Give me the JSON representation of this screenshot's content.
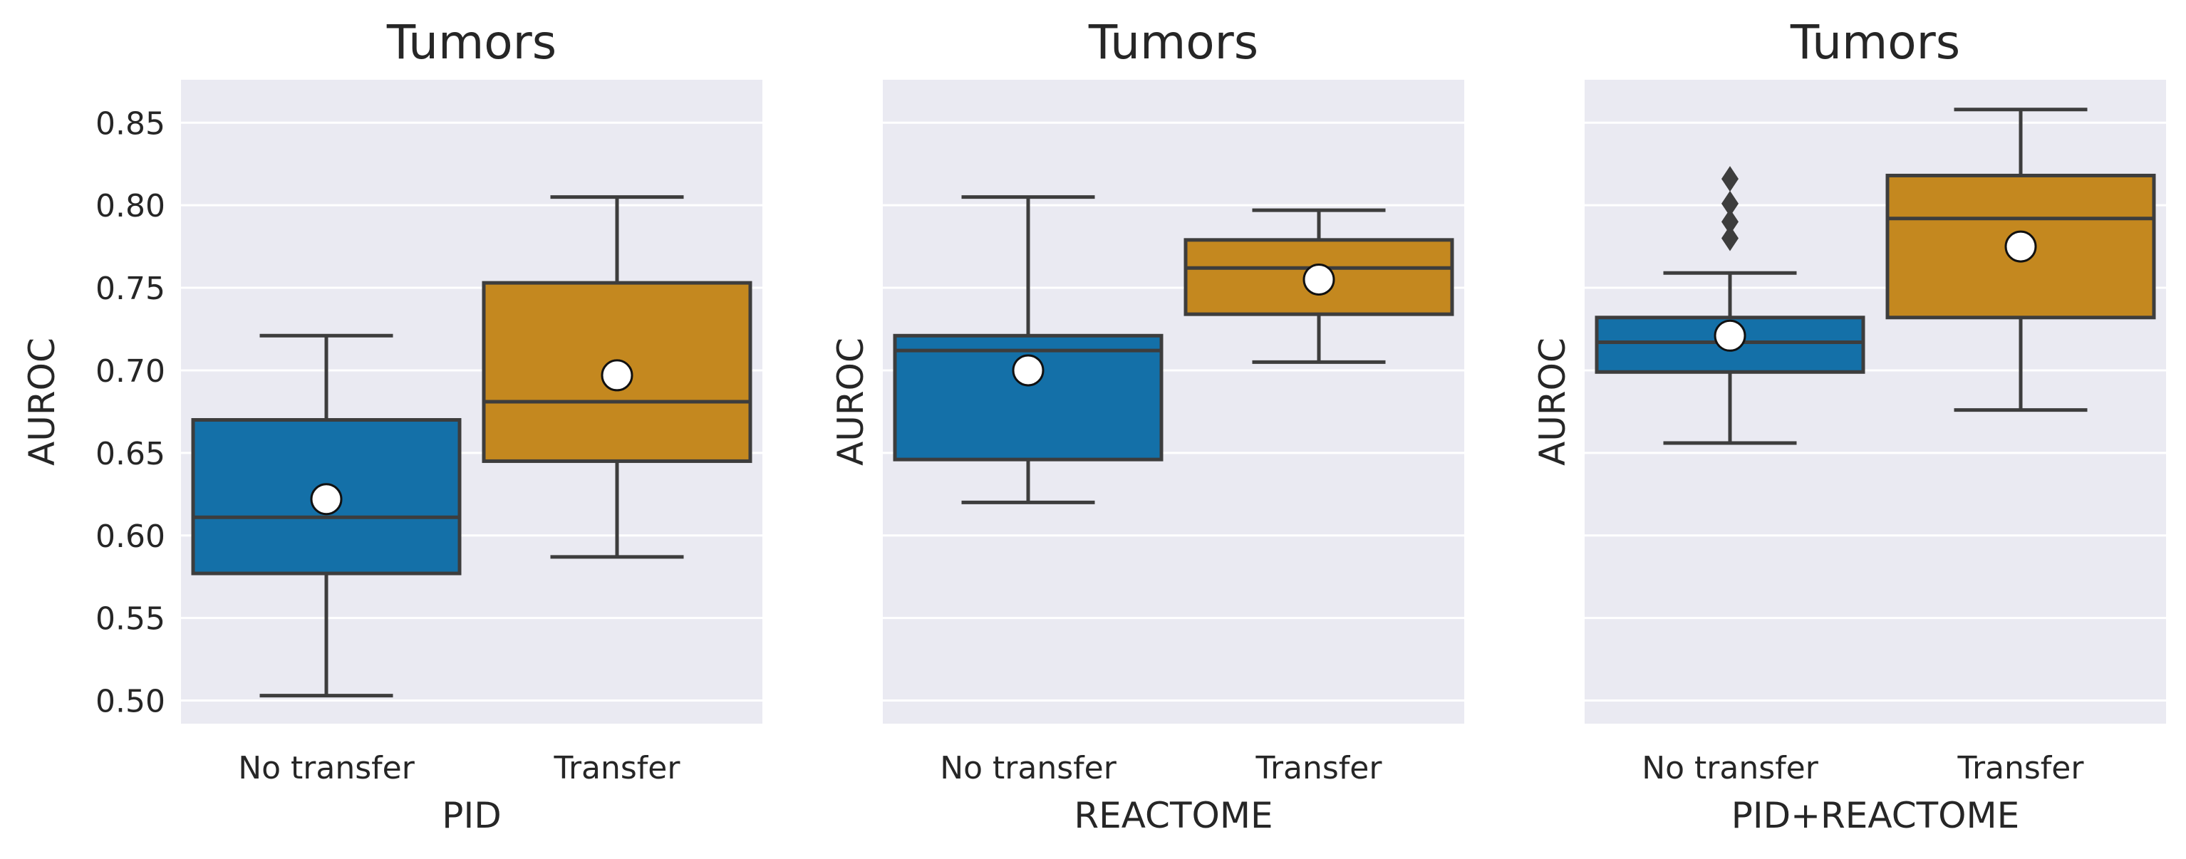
{
  "colors": {
    "panel_bg": "#EAEAF2",
    "grid": "#FFFFFF",
    "no_transfer": "#1470A8",
    "transfer": "#C4881F",
    "line": "#3D3D3D",
    "mean_marker": "#FFFFFF",
    "text": "#262626"
  },
  "chart_data": [
    {
      "type": "box",
      "title": "Tumors",
      "xlabel": "PID",
      "ylabel": "AUROC",
      "categories": [
        "No transfer",
        "Transfer"
      ],
      "ylim": [
        0.486,
        0.876
      ],
      "yticks": [
        "0.50",
        "0.55",
        "0.60",
        "0.65",
        "0.70",
        "0.75",
        "0.80",
        "0.85"
      ],
      "grid": true,
      "boxes": [
        {
          "category": "No transfer",
          "whisker_low": 0.503,
          "q1": 0.577,
          "median": 0.611,
          "q3": 0.67,
          "whisker_high": 0.721,
          "mean": 0.622,
          "outliers": []
        },
        {
          "category": "Transfer",
          "whisker_low": 0.587,
          "q1": 0.645,
          "median": 0.681,
          "q3": 0.753,
          "whisker_high": 0.805,
          "mean": 0.697,
          "outliers": []
        }
      ]
    },
    {
      "type": "box",
      "title": "Tumors",
      "xlabel": "REACTOME",
      "ylabel": "AUROC",
      "categories": [
        "No transfer",
        "Transfer"
      ],
      "ylim": [
        0.486,
        0.876
      ],
      "yticks": [],
      "grid": true,
      "boxes": [
        {
          "category": "No transfer",
          "whisker_low": 0.62,
          "q1": 0.646,
          "median": 0.712,
          "q3": 0.721,
          "whisker_high": 0.805,
          "mean": 0.7,
          "outliers": []
        },
        {
          "category": "Transfer",
          "whisker_low": 0.705,
          "q1": 0.734,
          "median": 0.762,
          "q3": 0.779,
          "whisker_high": 0.797,
          "mean": 0.755,
          "outliers": []
        }
      ]
    },
    {
      "type": "box",
      "title": "Tumors",
      "xlabel": "PID+REACTOME",
      "ylabel": "AUROC",
      "categories": [
        "No transfer",
        "Transfer"
      ],
      "ylim": [
        0.486,
        0.876
      ],
      "yticks": [],
      "grid": true,
      "boxes": [
        {
          "category": "No transfer",
          "whisker_low": 0.656,
          "q1": 0.699,
          "median": 0.717,
          "q3": 0.732,
          "whisker_high": 0.759,
          "mean": 0.721,
          "outliers": [
            0.78,
            0.79,
            0.801,
            0.816
          ]
        },
        {
          "category": "Transfer",
          "whisker_low": 0.676,
          "q1": 0.732,
          "median": 0.792,
          "q3": 0.818,
          "whisker_high": 0.858,
          "mean": 0.775,
          "outliers": []
        }
      ]
    }
  ]
}
